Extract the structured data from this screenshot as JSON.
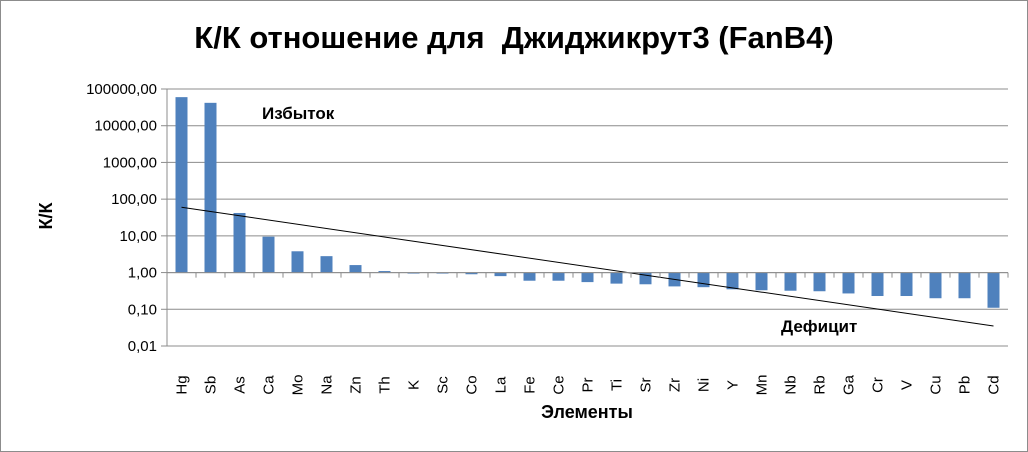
{
  "chart_data": {
    "type": "bar",
    "title": "К/К отношение для  Джиджикрут3 (FanB4)",
    "xlabel": "Элементы",
    "ylabel": "К/К",
    "yscale": "log",
    "ylim": [
      0.01,
      100000
    ],
    "y_ticks": [
      "0,01",
      "0,10",
      "1,00",
      "10,00",
      "100,00",
      "1000,00",
      "10000,00",
      "100000,00"
    ],
    "grid": "horizontal",
    "series_color": "#4f81bd",
    "categories": [
      "Hg",
      "Sb",
      "As",
      "Ca",
      "Mo",
      "Na",
      "Zn",
      "Th",
      "K",
      "Sc",
      "Co",
      "La",
      "Fe",
      "Ce",
      "Pr",
      "Ti",
      "Sr",
      "Zr",
      "Ni",
      "Y",
      "Mn",
      "Nb",
      "Rb",
      "Ga",
      "Cr",
      "V",
      "Cu",
      "Pb",
      "Cd"
    ],
    "values": [
      60000,
      42000,
      42,
      9.5,
      3.8,
      2.8,
      1.6,
      1.1,
      1.0,
      0.95,
      0.9,
      0.8,
      0.6,
      0.6,
      0.55,
      0.5,
      0.48,
      0.42,
      0.4,
      0.35,
      0.33,
      0.32,
      0.31,
      0.27,
      0.23,
      0.23,
      0.2,
      0.2,
      0.11
    ],
    "trendline": {
      "type": "log-linear",
      "start": 60,
      "end": 0.035,
      "color": "#000000"
    },
    "annotations": [
      "Избыток",
      "Дефицит"
    ]
  }
}
